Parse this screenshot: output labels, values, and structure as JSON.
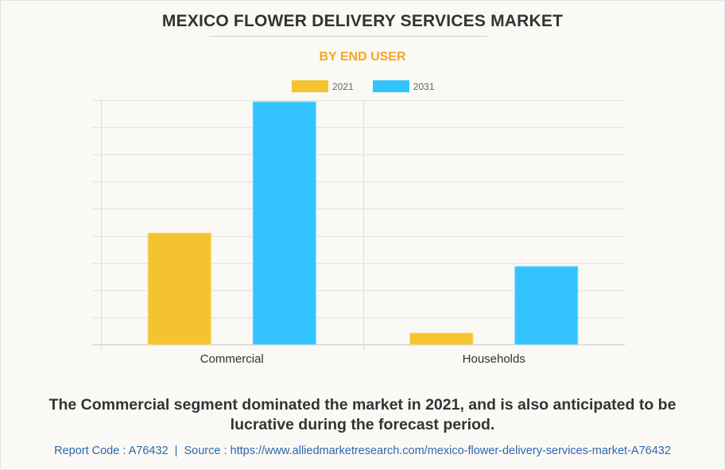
{
  "chart_data": {
    "type": "bar",
    "title": "MEXICO FLOWER DELIVERY SERVICES MARKET",
    "subtitle": "BY END USER",
    "categories": [
      "Commercial",
      "Households"
    ],
    "series": [
      {
        "name": "2021",
        "color": "#f4c430",
        "values": [
          4.1,
          0.41
        ]
      },
      {
        "name": "2031",
        "color": "#33c4ff",
        "values": [
          8.94,
          2.87
        ]
      }
    ],
    "xlabel": "",
    "ylabel": "",
    "ylim": [
      0,
      9
    ],
    "y_gridlines": 9,
    "y_tick_labels_shown": false,
    "grid": true,
    "legend_position": "top-center"
  },
  "summary": "The Commercial segment dominated the market in 2021, and is also anticipated to be lucrative during the forecast period.",
  "footer": {
    "report_code_label": "Report Code : A76432",
    "separator": "|",
    "source_label": "Source : https://www.alliedmarketresearch.com/mexico-flower-delivery-services-market-A76432"
  }
}
